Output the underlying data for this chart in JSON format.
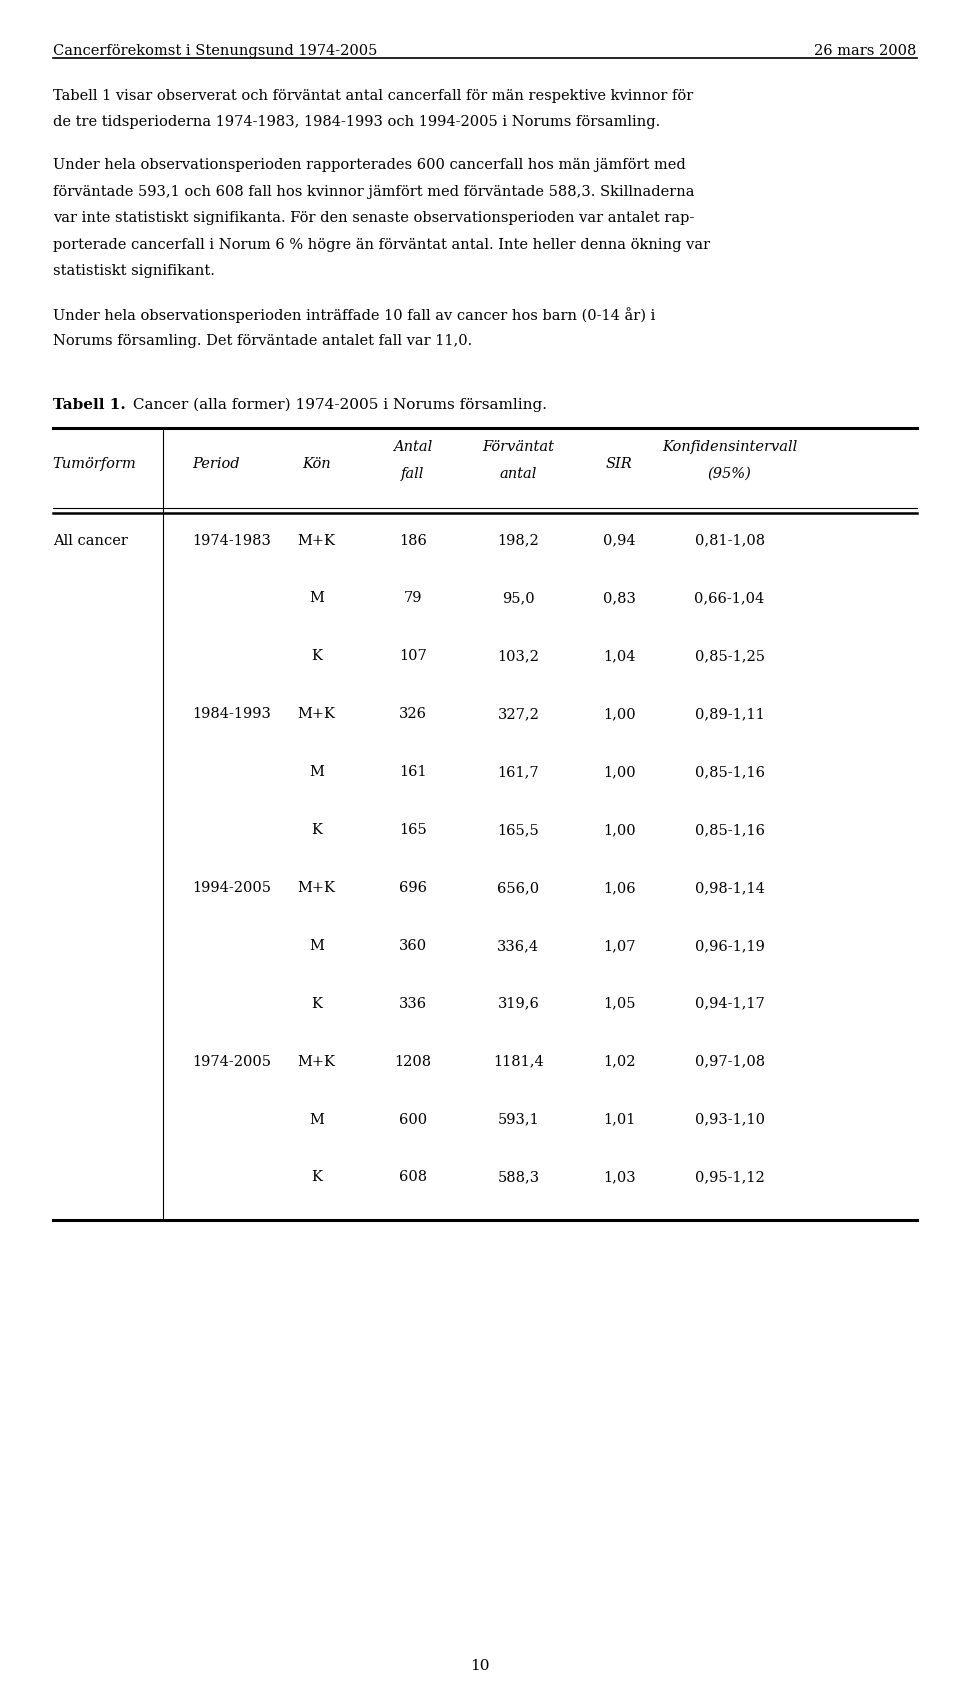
{
  "header_left": "Cancerförekomst i Stenungsund 1974-2005",
  "header_right": "26 mars 2008",
  "body_paragraphs": [
    [
      "Tabell 1 visar observerat och förväntat antal cancerfall för män respektive kvinnor för",
      "de tre tidsperioderna 1974-1983, 1984-1993 och 1994-2005 i Norums församling."
    ],
    [
      "Under hela observationsperioden rapporterades 600 cancerfall hos män jämfört med",
      "förväntade 593,1 och 608 fall hos kvinnor jämfört med förväntade 588,3. Skillnaderna",
      "var inte statistiskt signifikanta. För den senaste observationsperioden var antalet rap-",
      "porterade cancerfall i Norum 6 % högre än förväntat antal. Inte heller denna ökning var",
      "statistiskt signifikant."
    ],
    [
      "Under hela observationsperioden inträffade 10 fall av cancer hos barn (0-14 år) i",
      "Norums församling. Det förväntade antalet fall var 11,0."
    ]
  ],
  "table_caption_bold": "Tabell 1.",
  "table_caption_normal": " Cancer (alla former) 1974-2005 i Norums församling.",
  "col_headers": [
    "Tumörform",
    "Period",
    "Kön",
    "Antal\nfall",
    "Förväntat\nantal",
    "SIR",
    "Konfidensintervall\n(95%)"
  ],
  "col_aligns": [
    "left",
    "left",
    "center",
    "center",
    "center",
    "center",
    "center"
  ],
  "table_data": [
    [
      "All cancer",
      "1974-1983",
      "M+K",
      "186",
      "198,2",
      "0,94",
      "0,81-1,08"
    ],
    [
      "",
      "",
      "M",
      "79",
      "95,0",
      "0,83",
      "0,66-1,04"
    ],
    [
      "",
      "",
      "K",
      "107",
      "103,2",
      "1,04",
      "0,85-1,25"
    ],
    [
      "",
      "1984-1993",
      "M+K",
      "326",
      "327,2",
      "1,00",
      "0,89-1,11"
    ],
    [
      "",
      "",
      "M",
      "161",
      "161,7",
      "1,00",
      "0,85-1,16"
    ],
    [
      "",
      "",
      "K",
      "165",
      "165,5",
      "1,00",
      "0,85-1,16"
    ],
    [
      "",
      "1994-2005",
      "M+K",
      "696",
      "656,0",
      "1,06",
      "0,98-1,14"
    ],
    [
      "",
      "",
      "M",
      "360",
      "336,4",
      "1,07",
      "0,96-1,19"
    ],
    [
      "",
      "",
      "K",
      "336",
      "319,6",
      "1,05",
      "0,94-1,17"
    ],
    [
      "",
      "1974-2005",
      "M+K",
      "1208",
      "1181,4",
      "1,02",
      "0,97-1,08"
    ],
    [
      "",
      "",
      "M",
      "600",
      "593,1",
      "1,01",
      "0,93-1,10"
    ],
    [
      "",
      "",
      "K",
      "608",
      "588,3",
      "1,03",
      "0,95-1,12"
    ]
  ],
  "page_number": "10"
}
